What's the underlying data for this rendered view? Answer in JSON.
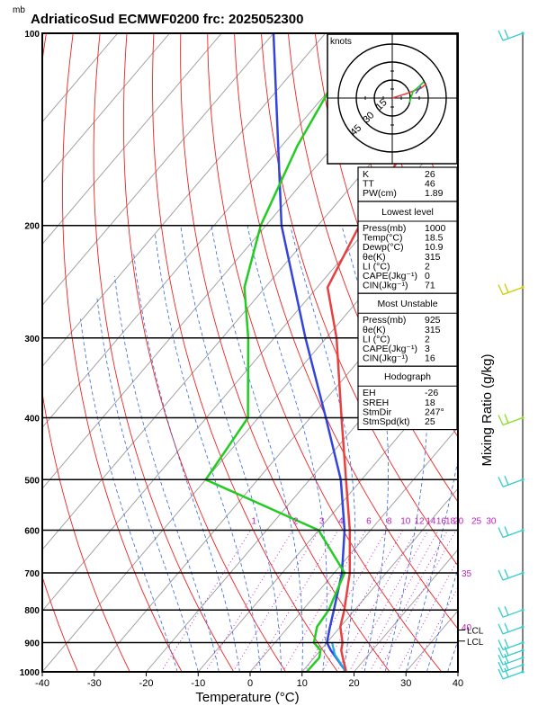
{
  "title": "AdriaticoSud ECMWF0200 frc: 2025052300",
  "unit_mb": "mb",
  "xlabel": "Temperature (°C)",
  "ylabel_right": "Mixing Ratio (g/kg)",
  "colors": {
    "temperature": "#e84040",
    "dewpoint": "#22cc22",
    "parcel": "#3344dd",
    "surface_parcel": "#22aadd",
    "isotherm": "#999999",
    "dry_adiabat": "#ee2222",
    "moist_adiabat": "#3366dd",
    "mixing_ratio": "#bb22bb",
    "wind_barb": "#33cccc",
    "wind_barb_high": "#cccc00",
    "wind_barb_mid": "#88dd22"
  },
  "chart_data": {
    "type": "skew-t",
    "xlim": [
      -40,
      40
    ],
    "ylim_mb": [
      1000,
      100
    ],
    "x_ticks": [
      "-40",
      "-30",
      "-20",
      "-10",
      "0",
      "10",
      "20",
      "30",
      "40"
    ],
    "y_ticks": [
      "100",
      "200",
      "300",
      "400",
      "500",
      "600",
      "700",
      "800",
      "900",
      "1000"
    ],
    "temperature_profile": [
      {
        "p": 1000,
        "t": 18.5
      },
      {
        "p": 950,
        "t": 15.5
      },
      {
        "p": 925,
        "t": 14.0
      },
      {
        "p": 900,
        "t": 13.0
      },
      {
        "p": 850,
        "t": 10.0
      },
      {
        "p": 800,
        "t": 8.0
      },
      {
        "p": 700,
        "t": 3.0
      },
      {
        "p": 600,
        "t": -4.0
      },
      {
        "p": 500,
        "t": -13.0
      },
      {
        "p": 400,
        "t": -24.0
      },
      {
        "p": 300,
        "t": -38.0
      },
      {
        "p": 250,
        "t": -48.0
      },
      {
        "p": 200,
        "t": -52.0
      },
      {
        "p": 150,
        "t": -56.0
      },
      {
        "p": 100,
        "t": -62.0
      }
    ],
    "dewpoint_profile": [
      {
        "p": 1000,
        "t": 10.9
      },
      {
        "p": 950,
        "t": 11.0
      },
      {
        "p": 925,
        "t": 10.0
      },
      {
        "p": 900,
        "t": 7.5
      },
      {
        "p": 850,
        "t": 5.5
      },
      {
        "p": 800,
        "t": 5.0
      },
      {
        "p": 700,
        "t": 2.0
      },
      {
        "p": 600,
        "t": -10.0
      },
      {
        "p": 500,
        "t": -40.0
      },
      {
        "p": 400,
        "t": -42.0
      },
      {
        "p": 300,
        "t": -55.0
      },
      {
        "p": 250,
        "t": -64.0
      },
      {
        "p": 200,
        "t": -71.0
      },
      {
        "p": 150,
        "t": -77.0
      },
      {
        "p": 100,
        "t": -83.0
      }
    ],
    "parcel_profile": [
      {
        "p": 1000,
        "t": 18.5
      },
      {
        "p": 925,
        "t": 12.0
      },
      {
        "p": 900,
        "t": 10.0
      },
      {
        "p": 850,
        "t": 8.0
      },
      {
        "p": 800,
        "t": 6.0
      },
      {
        "p": 700,
        "t": 1.5
      },
      {
        "p": 600,
        "t": -5.0
      },
      {
        "p": 500,
        "t": -14.0
      },
      {
        "p": 400,
        "t": -27.0
      },
      {
        "p": 300,
        "t": -44.0
      },
      {
        "p": 200,
        "t": -67.0
      },
      {
        "p": 100,
        "t": -100.0
      }
    ],
    "surface_parcel_profile": [
      {
        "p": 1000,
        "t": 18.5
      },
      {
        "p": 940,
        "t": 13.5
      },
      {
        "p": 900,
        "t": 11.0
      }
    ],
    "mixing_ratio_labels": [
      {
        "w": 1,
        "label": "1"
      },
      {
        "w": 2,
        "label": "2"
      },
      {
        "w": 3,
        "label": "3"
      },
      {
        "w": 4,
        "label": "4"
      },
      {
        "w": 6,
        "label": "6"
      },
      {
        "w": 8,
        "label": "8"
      },
      {
        "w": 10,
        "label": "10"
      },
      {
        "w": 12,
        "label": "12"
      },
      {
        "w": 14,
        "label": "14"
      },
      {
        "w": 16,
        "label": "16"
      },
      {
        "w": 18,
        "label": "18"
      },
      {
        "w": 20,
        "label": "20"
      },
      {
        "w": 25,
        "label": "25"
      },
      {
        "w": 30,
        "label": "30"
      }
    ],
    "theta_labels": [
      {
        "label": "35",
        "p": 700
      },
      {
        "label": "40",
        "p": 850
      }
    ],
    "lcl_labels": [
      {
        "label": "LCL",
        "p": 860
      },
      {
        "label": "LCL",
        "p": 895
      }
    ],
    "hodograph": {
      "unit_label": "knots",
      "rings_kt": [
        15,
        30,
        45
      ],
      "ring_labels": [
        "15",
        "30",
        "45"
      ]
    },
    "wind_barbs": [
      {
        "p": 100,
        "color": "#33cccc"
      },
      {
        "p": 250,
        "color": "#cccc00"
      },
      {
        "p": 400,
        "color": "#88dd22"
      },
      {
        "p": 500,
        "color": "#33cccc"
      },
      {
        "p": 600,
        "color": "#33cccc"
      },
      {
        "p": 700,
        "color": "#33cccc"
      },
      {
        "p": 800,
        "color": "#33cccc"
      },
      {
        "p": 850,
        "color": "#33cccc"
      },
      {
        "p": 900,
        "color": "#33cccc"
      },
      {
        "p": 925,
        "color": "#33cccc"
      },
      {
        "p": 950,
        "color": "#33cccc"
      },
      {
        "p": 975,
        "color": "#33cccc"
      },
      {
        "p": 1000,
        "color": "#33cccc"
      }
    ]
  },
  "indices": {
    "top": [
      {
        "label": "K",
        "value": "26"
      },
      {
        "label": "TT",
        "value": "46"
      },
      {
        "label": "PW(cm)",
        "value": "1.89"
      }
    ],
    "lowest_level": {
      "header": "Lowest level",
      "rows": [
        {
          "label": "Press(mb)",
          "value": "1000"
        },
        {
          "label": "Temp(°C)",
          "value": "18.5"
        },
        {
          "label": "Dewp(°C)",
          "value": "10.9"
        },
        {
          "label": "θe(K)",
          "value": "315"
        },
        {
          "label": "LI (°C)",
          "value": "2"
        },
        {
          "label": "CAPE(Jkg⁻¹)",
          "value": "0"
        },
        {
          "label": "CIN(Jkg⁻¹)",
          "value": "71"
        }
      ]
    },
    "most_unstable": {
      "header": "Most Unstable",
      "rows": [
        {
          "label": "Press(mb)",
          "value": "925"
        },
        {
          "label": "θe(K)",
          "value": "315"
        },
        {
          "label": "LI (°C)",
          "value": "2"
        },
        {
          "label": "CAPE(Jkg⁻¹)",
          "value": "3"
        },
        {
          "label": "CIN(Jkg⁻¹)",
          "value": "16"
        }
      ]
    },
    "hodograph_box": {
      "header": "Hodograph",
      "rows": [
        {
          "label": "EH",
          "value": "-26"
        },
        {
          "label": "SREH",
          "value": "18"
        },
        {
          "label": "StmDir",
          "value": "247°"
        },
        {
          "label": "StmSpd(kt)",
          "value": "25"
        }
      ]
    }
  }
}
